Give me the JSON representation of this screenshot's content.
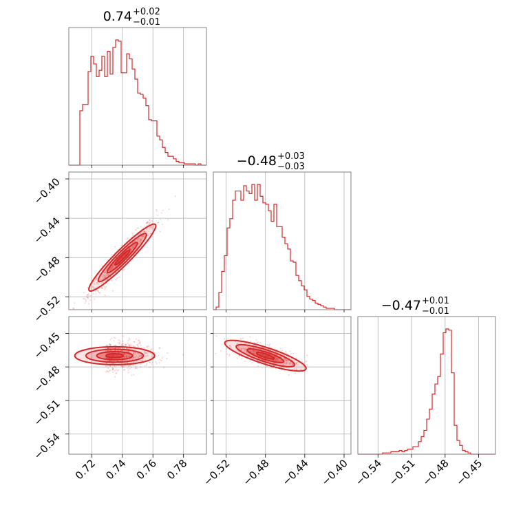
{
  "color": "#d62728",
  "chart_data": {
    "type": "corner",
    "grid": true,
    "parameters": [
      {
        "title_main": "0.74",
        "title_plus": "+0.02",
        "title_minus": "−0.01",
        "range": [
          0.705,
          0.795
        ],
        "ticks": [
          0.72,
          0.74,
          0.76,
          0.78
        ],
        "tick_labels": [
          "0.72",
          "0.74",
          "0.76",
          "0.78"
        ],
        "hist_bins": [
          0.705,
          0.795
        ],
        "hist": [
          0,
          0,
          0,
          0,
          0.43,
          0.48,
          0.48,
          0.74,
          0.86,
          0.8,
          0.7,
          0.75,
          0.86,
          0.7,
          0.9,
          0.72,
          0.93,
          0.99,
          0.98,
          0.73,
          0.73,
          0.88,
          0.84,
          0.76,
          0.68,
          0.57,
          0.56,
          0.53,
          0.47,
          0.36,
          0.35,
          0.35,
          0.23,
          0.2,
          0.14,
          0.1,
          0.07,
          0.07,
          0.05,
          0.03,
          0.02,
          0.02,
          0.01,
          0.01,
          0.01,
          0.01,
          0.0,
          0.01,
          0.0,
          0.0
        ]
      },
      {
        "title_main": "−0.48",
        "title_plus": "+0.03",
        "title_minus": "−0.03",
        "range": [
          -0.533,
          -0.393
        ],
        "ticks": [
          -0.52,
          -0.48,
          -0.44,
          -0.4
        ],
        "tick_labels": [
          "−0.52",
          "−0.48",
          "−0.44",
          "−0.40"
        ],
        "hist": [
          0.0,
          0.02,
          0.13,
          0.29,
          0.41,
          0.62,
          0.69,
          0.83,
          0.9,
          0.9,
          0.83,
          0.94,
          0.9,
          0.88,
          0.95,
          0.83,
          0.95,
          0.86,
          0.81,
          0.8,
          0.75,
          0.67,
          0.8,
          0.63,
          0.63,
          0.55,
          0.5,
          0.46,
          0.37,
          0.36,
          0.26,
          0.22,
          0.18,
          0.15,
          0.1,
          0.08,
          0.07,
          0.05,
          0.04,
          0.03,
          0.02,
          0.01,
          0.01,
          0.01,
          0.0,
          0.0,
          0.0,
          0.0,
          0.0,
          0.0
        ]
      },
      {
        "title_main": "−0.47",
        "title_plus": "+0.01",
        "title_minus": "−0.01",
        "range": [
          -0.558,
          -0.435
        ],
        "ticks": [
          -0.54,
          -0.51,
          -0.48,
          -0.45
        ],
        "tick_labels": [
          "−0.54",
          "−0.51",
          "−0.48",
          "−0.45"
        ],
        "hist": [
          0,
          0,
          0,
          0,
          0,
          0,
          0,
          0,
          0,
          0.01,
          0.01,
          0.01,
          0.02,
          0.02,
          0.02,
          0.03,
          0.02,
          0.03,
          0.04,
          0.04,
          0.06,
          0.06,
          0.1,
          0.14,
          0.19,
          0.28,
          0.36,
          0.48,
          0.56,
          0.62,
          0.8,
          0.97,
          1.0,
          0.99,
          0.65,
          0.23,
          0.11,
          0.07,
          0.03,
          0.02,
          0.01,
          0.0,
          0.0,
          0.0,
          0.0,
          0.0,
          0.0,
          0.0,
          0.0,
          0.0
        ]
      }
    ],
    "y_axis_labels": {
      "row1": {
        "ticks": [
          -0.52,
          -0.48,
          -0.44,
          -0.4
        ],
        "tick_labels": [
          "−0.52",
          "−0.48",
          "−0.44",
          "−0.40"
        ]
      },
      "row2": {
        "ticks": [
          -0.54,
          -0.51,
          -0.48,
          -0.45
        ],
        "tick_labels": [
          "−0.54",
          "−0.51",
          "−0.48",
          "−0.45"
        ]
      }
    },
    "pairs": [
      {
        "x_param": 0,
        "y_param": 1,
        "center": [
          0.74,
          -0.48
        ],
        "correlation": "positive",
        "scatter_spread": [
          0.02,
          0.035
        ]
      },
      {
        "x_param": 0,
        "y_param": 2,
        "center": [
          0.735,
          -0.47
        ],
        "correlation": "flat",
        "scatter_spread": [
          0.015,
          0.01
        ]
      },
      {
        "x_param": 1,
        "y_param": 2,
        "center": [
          -0.48,
          -0.47
        ],
        "correlation": "negative",
        "scatter_spread": [
          0.03,
          0.01
        ]
      }
    ]
  }
}
